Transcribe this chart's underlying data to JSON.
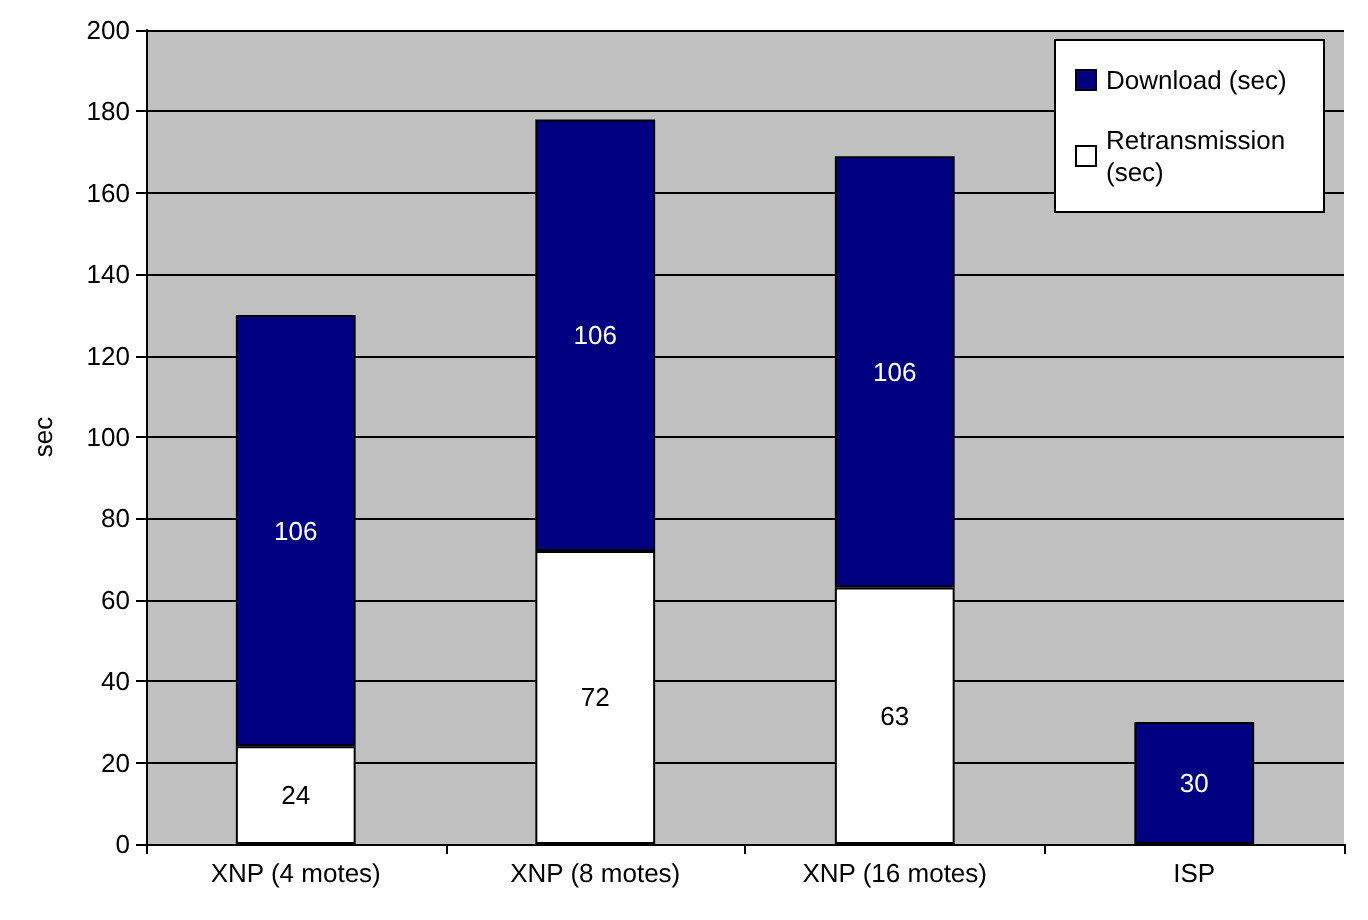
{
  "chart_data": {
    "type": "bar",
    "stacked": true,
    "ylabel": "sec",
    "categories": [
      "XNP (4 motes)",
      "XNP (8 motes)",
      "XNP (16 motes)",
      "ISP"
    ],
    "series": [
      {
        "name": "Retransmission (sec)",
        "color": "#ffffff",
        "values": [
          24,
          72,
          63,
          null
        ]
      },
      {
        "name": "Download (sec)",
        "color": "#000080",
        "values": [
          106,
          106,
          106,
          30
        ]
      }
    ],
    "ylim": [
      0,
      200
    ],
    "yticks": [
      0,
      20,
      40,
      60,
      80,
      100,
      120,
      140,
      160,
      180,
      200
    ],
    "grid": "y",
    "legend": "top right",
    "data_labels": true
  }
}
